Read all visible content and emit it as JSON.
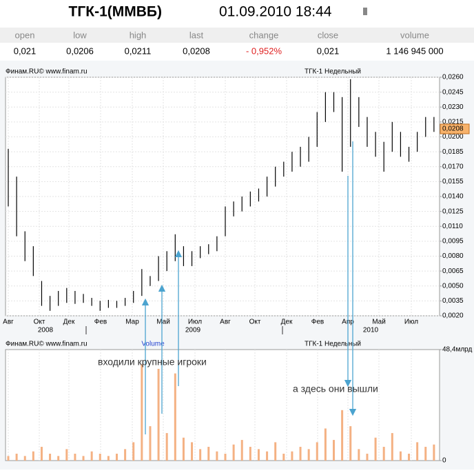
{
  "title": "ТГК-1(ММВБ)",
  "datetime": "01.09.2010 18:44",
  "quote": {
    "columns": [
      "open",
      "low",
      "high",
      "last",
      "change",
      "close",
      "volume"
    ],
    "values": [
      "0,021",
      "0,0206",
      "0,0211",
      "0,0208",
      "- 0,952%",
      "0,021",
      "1 146 945 000"
    ]
  },
  "chart_data": [
    {
      "type": "hilo",
      "source": "Финам.RU©  www.finam.ru",
      "title": "ТГК-1 Недельный",
      "x_labels": [
        "Авг",
        "Окт",
        "Дек",
        "Фев",
        "Мар",
        "Май",
        "Июл",
        "Авг",
        "Окт",
        "Дек",
        "Фев",
        "Апр",
        "Май",
        "Июл"
      ],
      "year_labels": [
        "2008",
        "2009",
        "2010"
      ],
      "color": "#000000",
      "low": [
        0.013,
        0.01,
        0.0075,
        0.006,
        0.003,
        0.0025,
        0.003,
        0.0033,
        0.0032,
        0.0033,
        0.003,
        0.0025,
        0.0028,
        0.0028,
        0.003,
        0.0033,
        0.004,
        0.005,
        0.0055,
        0.0065,
        0.0075,
        0.007,
        0.007,
        0.0078,
        0.0082,
        0.0085,
        0.01,
        0.012,
        0.0125,
        0.013,
        0.0135,
        0.014,
        0.015,
        0.016,
        0.0165,
        0.017,
        0.0175,
        0.019,
        0.0215,
        0.0225,
        0.0165,
        0.019,
        0.021,
        0.019,
        0.018,
        0.0165,
        0.0185,
        0.018,
        0.0175,
        0.0185,
        0.02,
        0.0205
      ],
      "high": [
        0.0188,
        0.016,
        0.0105,
        0.009,
        0.0055,
        0.004,
        0.0045,
        0.0048,
        0.0045,
        0.0042,
        0.0038,
        0.0035,
        0.0036,
        0.0035,
        0.0038,
        0.0045,
        0.0067,
        0.006,
        0.008,
        0.0085,
        0.0102,
        0.009,
        0.0085,
        0.009,
        0.0092,
        0.01,
        0.013,
        0.0135,
        0.014,
        0.0145,
        0.0148,
        0.016,
        0.017,
        0.0175,
        0.0185,
        0.019,
        0.02,
        0.0225,
        0.0245,
        0.0245,
        0.024,
        0.0258,
        0.024,
        0.022,
        0.0205,
        0.0195,
        0.0215,
        0.0205,
        0.019,
        0.0205,
        0.022,
        0.022
      ],
      "last_price": {
        "value": 0.0208,
        "label": "0,0208"
      },
      "ylim": [
        0.002,
        0.026
      ],
      "yticks": [
        {
          "value": 0.002,
          "label": "0,0020"
        },
        {
          "value": 0.0035,
          "label": "0,0035"
        },
        {
          "value": 0.005,
          "label": "0,0050"
        },
        {
          "value": 0.0065,
          "label": "0,0065"
        },
        {
          "value": 0.008,
          "label": "0,0080"
        },
        {
          "value": 0.0095,
          "label": "0,0095"
        },
        {
          "value": 0.011,
          "label": "0,0110"
        },
        {
          "value": 0.0125,
          "label": "0,0125"
        },
        {
          "value": 0.014,
          "label": "0,0140"
        },
        {
          "value": 0.0155,
          "label": "0,0155"
        },
        {
          "value": 0.017,
          "label": "0,0170"
        },
        {
          "value": 0.0185,
          "label": "0,0185"
        },
        {
          "value": 0.02,
          "label": "0,0200"
        },
        {
          "value": 0.0215,
          "label": "0,0215"
        },
        {
          "value": 0.023,
          "label": "0,0230"
        },
        {
          "value": 0.0245,
          "label": "0,0245"
        },
        {
          "value": 0.026,
          "label": "0,0260"
        }
      ],
      "grid": true
    },
    {
      "type": "bar",
      "source": "Финам.RU©  www.finam.ru",
      "series_label": "Volume",
      "title": "ТГК-1 Недельный",
      "color": "#f4b183",
      "values": [
        2,
        3,
        2,
        4,
        6,
        3,
        2,
        5,
        3,
        2,
        4,
        3,
        2,
        3,
        5,
        8,
        42,
        15,
        40,
        12,
        38,
        10,
        8,
        5,
        6,
        4,
        3,
        7,
        9,
        6,
        5,
        4,
        8,
        3,
        4,
        6,
        5,
        8,
        14,
        9,
        22,
        15,
        5,
        3,
        10,
        6,
        12,
        4,
        3,
        8,
        6,
        7
      ],
      "ylim": [
        0,
        48.4
      ],
      "yticks": [
        0,
        {
          "value": 48.4,
          "label": "48,4млрд"
        }
      ],
      "annotations": [
        "входили крупные игроки",
        "а здесь они вышли"
      ],
      "grid": true
    }
  ]
}
